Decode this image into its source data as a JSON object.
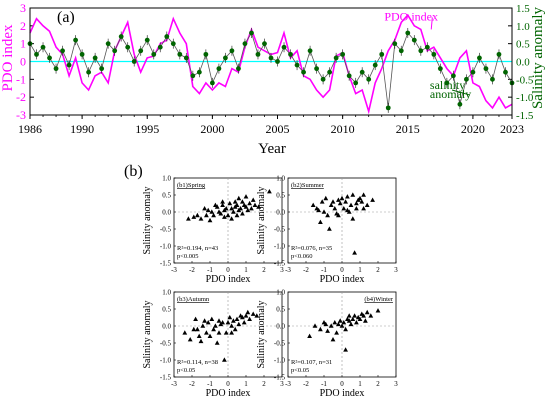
{
  "chart_data": [
    {
      "type": "line",
      "panel_label": "(a)",
      "xlabel": "Year",
      "ylabel_left": "PDO index",
      "ylabel_right": "Salinity anomaly",
      "xlim": [
        1986,
        2023
      ],
      "ylim_left": [
        -3,
        3
      ],
      "ylim_right": [
        -1.5,
        1.5
      ],
      "x_ticks": [
        "1986",
        "1990",
        "1995",
        "2000",
        "2005",
        "2010",
        "2015",
        "2020",
        "2023"
      ],
      "x_tick_values": [
        1986,
        1990,
        1995,
        2000,
        2005,
        2010,
        2015,
        2020,
        2023
      ],
      "y_ticks_left": [
        "3",
        "2",
        "1",
        "0",
        "-1",
        "-2",
        "-3"
      ],
      "y_ticks_right": [
        "1.5",
        "1.0",
        "0.5",
        "0.0",
        "-0.5",
        "-1.0",
        "-1.5"
      ],
      "colors": {
        "pdo": "#ff00ff",
        "salinity": "#006400",
        "zero_line": "#00ffff",
        "left_axis": "#ff00ff",
        "right_axis": "#006400"
      },
      "annotations": [
        {
          "text": "PDO index",
          "year": 2013.2,
          "value": 2.3,
          "arrow_to": [
            2016.8,
            1.8
          ]
        },
        {
          "text": "salinity",
          "year": 2016.7,
          "value": -1.55
        },
        {
          "text": "anomaly",
          "year": 2016.7,
          "value": -2.05,
          "arrow_to": [
            2018.4,
            -1.6
          ]
        }
      ],
      "series": [
        {
          "axis": "left",
          "years": [
            1986.0,
            1986.5,
            1987.0,
            1987.5,
            1988.0,
            1988.5,
            1989.0,
            1989.5,
            1990.0,
            1990.5,
            1991.0,
            1991.5,
            1992.0,
            1992.5,
            1993.0,
            1993.5,
            1994.0,
            1994.5,
            1995.0,
            1995.5,
            1996.0,
            1996.5,
            1997.0,
            1997.5,
            1998.0,
            1998.5,
            1999.0,
            1999.5,
            2000.0,
            2000.5,
            2001.0,
            2001.5,
            2002.0,
            2002.5,
            2003.0,
            2003.5,
            2004.0,
            2004.5,
            2005.0,
            2005.5,
            2006.0,
            2006.5,
            2007.0,
            2007.5,
            2008.0,
            2008.5,
            2009.0,
            2009.5,
            2010.0,
            2010.5,
            2011.0,
            2011.5,
            2012.0,
            2012.5,
            2013.0,
            2013.5,
            2014.0,
            2014.5,
            2015.0,
            2015.5,
            2016.0,
            2016.5,
            2017.0,
            2017.5,
            2018.0,
            2018.5,
            2019.0,
            2019.5,
            2020.0,
            2020.5,
            2021.0,
            2021.5,
            2022.0,
            2022.5,
            2023.0
          ],
          "values": [
            1.6,
            2.4,
            2.0,
            1.7,
            0.8,
            0.4,
            -0.8,
            0.2,
            -1.2,
            -1.6,
            -0.8,
            -0.6,
            -1.2,
            0.6,
            1.4,
            2.2,
            0.4,
            -0.6,
            0.2,
            0.3,
            1.0,
            1.2,
            2.4,
            1.6,
            1.0,
            -1.4,
            -1.8,
            -1.2,
            -1.6,
            -1.2,
            -1.4,
            -0.4,
            -0.6,
            0.8,
            1.8,
            0.8,
            0.6,
            0.4,
            0.5,
            1.6,
            0.2,
            0.6,
            -0.8,
            -1.0,
            -1.6,
            -2.0,
            -1.6,
            0.3,
            0.5,
            -0.8,
            -1.8,
            -1.6,
            -2.8,
            -1.2,
            -0.4,
            0.6,
            1.2,
            2.2,
            2.6,
            2.0,
            1.8,
            0.6,
            0.8,
            0.2,
            -0.4,
            -0.8,
            0.2,
            0.6,
            -1.2,
            -1.4,
            -2.2,
            -2.6,
            -2.0,
            -2.6,
            -2.4
          ]
        },
        {
          "axis": "right",
          "years": [
            1986.0,
            1986.5,
            1987.0,
            1987.5,
            1988.0,
            1988.5,
            1989.0,
            1989.5,
            1990.0,
            1990.5,
            1991.0,
            1991.5,
            1992.0,
            1992.5,
            1993.0,
            1993.5,
            1994.0,
            1994.5,
            1995.0,
            1995.5,
            1996.0,
            1996.5,
            1997.0,
            1997.5,
            1998.0,
            1998.5,
            1999.0,
            1999.5,
            2000.0,
            2000.5,
            2001.0,
            2001.5,
            2002.0,
            2002.5,
            2003.0,
            2003.5,
            2004.0,
            2004.5,
            2005.0,
            2005.5,
            2006.0,
            2006.5,
            2007.0,
            2007.5,
            2008.0,
            2008.5,
            2009.0,
            2009.5,
            2010.0,
            2010.5,
            2011.0,
            2011.5,
            2012.0,
            2012.5,
            2013.0,
            2013.5,
            2014.0,
            2014.5,
            2015.0,
            2015.5,
            2016.0,
            2016.5,
            2017.0,
            2017.5,
            2018.0,
            2018.5,
            2019.0,
            2019.5,
            2020.0,
            2020.5,
            2021.0,
            2021.5,
            2022.0,
            2022.5,
            2023.0
          ],
          "values": [
            0.5,
            0.2,
            0.4,
            0.1,
            -0.2,
            0.3,
            -0.1,
            0.6,
            0.2,
            -0.3,
            0.1,
            -0.2,
            0.5,
            0.3,
            0.7,
            0.4,
            0.0,
            0.3,
            0.6,
            0.2,
            0.4,
            0.7,
            0.5,
            0.2,
            0.1,
            -0.4,
            -0.3,
            0.2,
            -0.6,
            -0.2,
            0.1,
            0.3,
            -0.2,
            0.5,
            0.8,
            0.2,
            0.5,
            0.1,
            0.0,
            0.4,
            0.2,
            -0.1,
            -0.3,
            0.3,
            -0.2,
            -0.5,
            -0.3,
            0.1,
            0.2,
            -0.4,
            -0.6,
            -0.3,
            -0.5,
            -0.1,
            0.2,
            -1.3,
            0.5,
            0.3,
            0.8,
            0.6,
            0.3,
            0.4,
            0.2,
            -0.2,
            -0.6,
            -0.4,
            -1.2,
            -0.5,
            -0.3,
            0.1,
            -0.2,
            -0.5,
            0.2,
            -0.3,
            -0.6
          ]
        }
      ]
    },
    {
      "type": "scatter",
      "panel_label": "(b)",
      "xlabel": "PDO index",
      "ylabel": "Salinity anomaly",
      "xlim": [
        -3,
        3
      ],
      "ylim": [
        -1.5,
        1.0
      ],
      "x_ticks": [
        "-3",
        "-2",
        "-1",
        "0",
        "1",
        "2",
        "3"
      ],
      "y_ticks": [
        "1.0",
        "0.5",
        "0.0",
        "-0.5",
        "-1.0",
        "-1.5"
      ],
      "subplots": [
        {
          "title": "(b1)Spring",
          "stats": [
            "R²=0.194, n=43",
            "p<0.005"
          ],
          "points": [
            [
              -2.2,
              -0.2
            ],
            [
              -1.9,
              -0.15
            ],
            [
              -1.7,
              -0.1
            ],
            [
              -1.5,
              -0.2
            ],
            [
              -1.3,
              0.1
            ],
            [
              -1.2,
              -0.1
            ],
            [
              -1.0,
              -0.25
            ],
            [
              -0.9,
              0.0
            ],
            [
              -0.8,
              -0.1
            ],
            [
              -0.6,
              0.15
            ],
            [
              -0.5,
              0.0
            ],
            [
              -0.4,
              -0.05
            ],
            [
              -0.3,
              0.2
            ],
            [
              -0.2,
              0.05
            ],
            [
              -0.1,
              0.1
            ],
            [
              0.0,
              -0.1
            ],
            [
              0.1,
              0.25
            ],
            [
              0.2,
              0.1
            ],
            [
              0.3,
              0.0
            ],
            [
              0.4,
              0.15
            ],
            [
              0.5,
              0.2
            ],
            [
              0.6,
              0.05
            ],
            [
              0.7,
              0.1
            ],
            [
              0.8,
              0.3
            ],
            [
              0.9,
              0.2
            ],
            [
              1.0,
              0.15
            ],
            [
              1.1,
              0.05
            ],
            [
              1.2,
              0.25
            ],
            [
              1.3,
              0.1
            ],
            [
              1.5,
              0.2
            ],
            [
              1.7,
              0.15
            ],
            [
              2.3,
              0.6
            ],
            [
              0.4,
              0.3
            ],
            [
              -0.7,
              0.2
            ],
            [
              0.6,
              0.4
            ],
            [
              1.0,
              0.45
            ],
            [
              -0.2,
              -0.15
            ],
            [
              0.8,
              -0.05
            ],
            [
              0.2,
              -0.2
            ],
            [
              -0.3,
              0.3
            ],
            [
              1.4,
              0.35
            ],
            [
              0.5,
              -0.1
            ],
            [
              -1.1,
              0.05
            ]
          ]
        },
        {
          "title": "(b2)Summer",
          "stats": [
            "R²=0.076, n=35",
            "p<0.060"
          ],
          "points": [
            [
              -1.6,
              0.2
            ],
            [
              -1.4,
              0.1
            ],
            [
              -1.2,
              -0.3
            ],
            [
              -1.1,
              0.3
            ],
            [
              -1.0,
              0.0
            ],
            [
              -0.9,
              0.4
            ],
            [
              -0.8,
              -0.1
            ],
            [
              -0.6,
              0.2
            ],
            [
              -0.5,
              0.3
            ],
            [
              -0.4,
              0.1
            ],
            [
              -0.3,
              -0.05
            ],
            [
              -0.2,
              0.35
            ],
            [
              -0.1,
              0.25
            ],
            [
              0.0,
              0.4
            ],
            [
              0.1,
              0.1
            ],
            [
              0.2,
              0.3
            ],
            [
              0.3,
              0.45
            ],
            [
              0.4,
              0.0
            ],
            [
              0.5,
              0.2
            ],
            [
              0.6,
              -0.2
            ],
            [
              0.6,
              0.5
            ],
            [
              0.7,
              -1.2
            ],
            [
              0.8,
              0.1
            ],
            [
              0.9,
              0.35
            ],
            [
              1.0,
              0.4
            ],
            [
              1.1,
              0.3
            ],
            [
              1.2,
              0.5
            ],
            [
              1.4,
              0.2
            ],
            [
              1.7,
              0.35
            ],
            [
              -0.7,
              -0.5
            ],
            [
              -0.2,
              -0.1
            ],
            [
              0.3,
              0.05
            ],
            [
              0.8,
              0.25
            ],
            [
              1.2,
              0.1
            ],
            [
              -1.3,
              0.05
            ]
          ]
        },
        {
          "title": "(b3)Autumn",
          "stats": [
            "R²=0.114, n=38",
            "p<0.05"
          ],
          "points": [
            [
              -2.4,
              -0.2
            ],
            [
              -2.1,
              -0.4
            ],
            [
              -1.9,
              -0.1
            ],
            [
              -1.8,
              0.2
            ],
            [
              -1.6,
              -0.3
            ],
            [
              -1.5,
              -0.45
            ],
            [
              -1.4,
              0.0
            ],
            [
              -1.2,
              -0.2
            ],
            [
              -1.1,
              0.1
            ],
            [
              -1.0,
              -0.3
            ],
            [
              -0.9,
              0.2
            ],
            [
              -0.8,
              -0.1
            ],
            [
              -0.7,
              0.0
            ],
            [
              -0.6,
              -0.5
            ],
            [
              -0.5,
              0.15
            ],
            [
              -0.4,
              0.05
            ],
            [
              -0.3,
              0.1
            ],
            [
              -0.2,
              -1.0
            ],
            [
              -0.1,
              -0.2
            ],
            [
              0.0,
              0.1
            ],
            [
              0.1,
              0.25
            ],
            [
              0.2,
              0.0
            ],
            [
              0.3,
              0.15
            ],
            [
              0.4,
              -0.1
            ],
            [
              0.5,
              0.2
            ],
            [
              0.7,
              0.3
            ],
            [
              0.8,
              0.25
            ],
            [
              0.9,
              0.1
            ],
            [
              1.0,
              0.3
            ],
            [
              1.1,
              0.4
            ],
            [
              1.2,
              0.2
            ],
            [
              1.4,
              0.35
            ],
            [
              1.6,
              0.3
            ],
            [
              -1.7,
              -0.1
            ],
            [
              -0.5,
              -0.2
            ],
            [
              0.2,
              -0.2
            ],
            [
              0.6,
              0.05
            ],
            [
              -1.3,
              0.15
            ]
          ]
        },
        {
          "title": "(b4)Winter",
          "stats": [
            "R²=0.107, n=31",
            "p<0.05"
          ],
          "points": [
            [
              -1.8,
              -0.3
            ],
            [
              -1.5,
              0.0
            ],
            [
              -1.2,
              -0.1
            ],
            [
              -1.0,
              0.1
            ],
            [
              -0.8,
              -0.15
            ],
            [
              -0.6,
              0.0
            ],
            [
              -0.4,
              0.1
            ],
            [
              -0.3,
              -0.2
            ],
            [
              -0.2,
              0.05
            ],
            [
              -0.1,
              0.15
            ],
            [
              0.0,
              0.0
            ],
            [
              0.1,
              0.1
            ],
            [
              0.2,
              -0.1
            ],
            [
              0.3,
              0.2
            ],
            [
              0.4,
              0.15
            ],
            [
              0.5,
              0.05
            ],
            [
              0.6,
              0.2
            ],
            [
              0.7,
              0.3
            ],
            [
              0.8,
              0.1
            ],
            [
              0.9,
              0.25
            ],
            [
              1.0,
              0.2
            ],
            [
              1.1,
              0.35
            ],
            [
              1.2,
              0.3
            ],
            [
              1.4,
              0.4
            ],
            [
              1.6,
              0.3
            ],
            [
              2.0,
              0.45
            ],
            [
              -0.5,
              -0.4
            ],
            [
              0.2,
              -0.7
            ],
            [
              0.4,
              0.3
            ],
            [
              -0.9,
              0.05
            ],
            [
              1.3,
              0.15
            ]
          ]
        }
      ]
    }
  ]
}
